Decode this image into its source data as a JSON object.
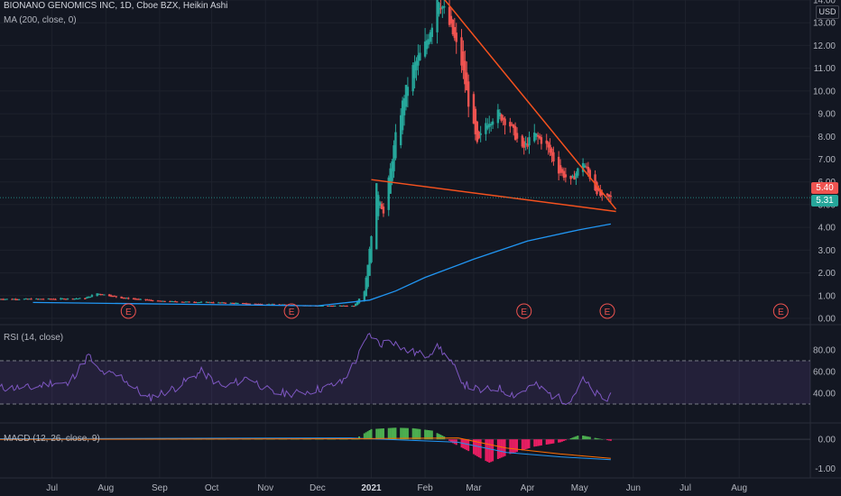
{
  "title": {
    "symbol": "BIONANO GENOMICS INC, 1D, Cboe BZX, Heikin Ashi",
    "ma": "MA (200, close, 0)",
    "rsi": "RSI (14, close)",
    "macd": "MACD (12, 26, close, 9)"
  },
  "badges": {
    "currency": "USD",
    "price_red": "5.40",
    "price_green": "5.31"
  },
  "colors": {
    "background": "#131722",
    "grid": "#1e222d",
    "up": "#26a69a",
    "down": "#ef5350",
    "ma": "#2196f3",
    "rsi": "#7e57c2",
    "trendline": "#f4511e",
    "macd_up": "#4caf50",
    "macd_down": "#e91e63",
    "earnings": "#ef5350"
  },
  "chart_data": {
    "type": "candlestick",
    "x_ticks": [
      "Jul",
      "Aug",
      "Sep",
      "Oct",
      "Nov",
      "Dec",
      "2021",
      "Feb",
      "Mar",
      "Apr",
      "May",
      "Jun",
      "Jul",
      "Aug"
    ],
    "price_axis": {
      "ticks": [
        "14.00",
        "13.00",
        "12.00",
        "11.00",
        "10.00",
        "9.00",
        "8.00",
        "7.00",
        "6.00",
        "5.00",
        "4.00",
        "3.00",
        "2.00",
        "1.00",
        "0.00"
      ],
      "range": [
        0,
        14
      ]
    },
    "price_path": [
      [
        "2020-07-01",
        0.85
      ],
      [
        "2020-07-20",
        0.88
      ],
      [
        "2020-07-27",
        1.1
      ],
      [
        "2020-08-10",
        0.9
      ],
      [
        "2020-09-01",
        0.75
      ],
      [
        "2020-10-01",
        0.7
      ],
      [
        "2020-11-01",
        0.62
      ],
      [
        "2020-12-01",
        0.55
      ],
      [
        "2020-12-22",
        0.55
      ],
      [
        "2020-12-28",
        1.2
      ],
      [
        "2020-12-31",
        3.0
      ],
      [
        "2021-01-04",
        5.8
      ],
      [
        "2021-01-08",
        4.6
      ],
      [
        "2021-01-15",
        8.0
      ],
      [
        "2021-01-20",
        9.8
      ],
      [
        "2021-01-25",
        11.0
      ],
      [
        "2021-02-01",
        12.0
      ],
      [
        "2021-02-05",
        13.0
      ],
      [
        "2021-02-08",
        14.3
      ],
      [
        "2021-02-12",
        13.5
      ],
      [
        "2021-02-17",
        12.5
      ],
      [
        "2021-02-22",
        11.2
      ],
      [
        "2021-02-26",
        9.5
      ],
      [
        "2021-03-03",
        7.6
      ],
      [
        "2021-03-08",
        8.6
      ],
      [
        "2021-03-15",
        9.0
      ],
      [
        "2021-03-22",
        8.5
      ],
      [
        "2021-03-29",
        7.4
      ],
      [
        "2021-04-05",
        8.1
      ],
      [
        "2021-04-12",
        7.6
      ],
      [
        "2021-04-19",
        6.5
      ],
      [
        "2021-04-26",
        6.0
      ],
      [
        "2021-05-03",
        6.9
      ],
      [
        "2021-05-10",
        5.7
      ],
      [
        "2021-05-14",
        5.3
      ],
      [
        "2021-05-19",
        5.3
      ]
    ],
    "moving_average_200": [
      [
        "2020-06-20",
        0.7
      ],
      [
        "2020-12-01",
        0.55
      ],
      [
        "2020-12-31",
        0.8
      ],
      [
        "2021-01-15",
        1.2
      ],
      [
        "2021-02-01",
        1.8
      ],
      [
        "2021-03-01",
        2.6
      ],
      [
        "2021-04-01",
        3.4
      ],
      [
        "2021-05-01",
        3.9
      ],
      [
        "2021-05-19",
        4.15
      ]
    ],
    "trendlines": [
      {
        "from": [
          "2021-02-07",
          14.5
        ],
        "to": [
          "2021-05-22",
          4.8
        ]
      },
      {
        "from": [
          "2021-01-01",
          6.1
        ],
        "to": [
          "2021-05-22",
          4.7
        ]
      }
    ],
    "earnings_markers": [
      {
        "date": "2020-08-14",
        "label": "E"
      },
      {
        "date": "2020-11-16",
        "label": "E"
      },
      {
        "date": "2021-03-30",
        "label": "E"
      },
      {
        "date": "2021-05-17",
        "label": "E"
      },
      {
        "date": "2021-08-25",
        "label": "E"
      }
    ],
    "rsi": {
      "axis_ticks": [
        "80.00",
        "60.00",
        "40.00"
      ],
      "range": [
        20,
        100
      ],
      "bands": [
        70,
        30
      ],
      "values": [
        [
          "2020-06-20",
          45
        ],
        [
          "2020-07-01",
          50
        ],
        [
          "2020-07-10",
          48
        ],
        [
          "2020-07-22",
          75
        ],
        [
          "2020-07-28",
          60
        ],
        [
          "2020-08-10",
          55
        ],
        [
          "2020-08-25",
          35
        ],
        [
          "2020-09-10",
          45
        ],
        [
          "2020-09-25",
          60
        ],
        [
          "2020-10-08",
          45
        ],
        [
          "2020-10-22",
          55
        ],
        [
          "2020-11-05",
          40
        ],
        [
          "2020-11-20",
          40
        ],
        [
          "2020-12-05",
          45
        ],
        [
          "2020-12-15",
          50
        ],
        [
          "2020-12-23",
          70
        ],
        [
          "2020-12-31",
          95
        ],
        [
          "2021-01-06",
          85
        ],
        [
          "2021-01-12",
          90
        ],
        [
          "2021-01-20",
          80
        ],
        [
          "2021-02-01",
          75
        ],
        [
          "2021-02-09",
          83
        ],
        [
          "2021-02-15",
          70
        ],
        [
          "2021-02-24",
          48
        ],
        [
          "2021-03-05",
          42
        ],
        [
          "2021-03-15",
          45
        ],
        [
          "2021-03-25",
          38
        ],
        [
          "2021-04-05",
          48
        ],
        [
          "2021-04-15",
          38
        ],
        [
          "2021-04-25",
          32
        ],
        [
          "2021-05-03",
          52
        ],
        [
          "2021-05-10",
          40
        ],
        [
          "2021-05-17",
          33
        ],
        [
          "2021-05-19",
          40
        ]
      ]
    },
    "macd": {
      "axis_ticks": [
        "0.00",
        "-1.00"
      ],
      "range": [
        -1.2,
        0.5
      ],
      "histogram": [
        [
          "2020-12-25",
          0.1
        ],
        [
          "2021-01-01",
          0.35
        ],
        [
          "2021-01-15",
          0.4
        ],
        [
          "2021-01-25",
          0.38
        ],
        [
          "2021-02-05",
          0.3
        ],
        [
          "2021-02-12",
          0.1
        ],
        [
          "2021-02-16",
          -0.1
        ],
        [
          "2021-02-26",
          -0.4
        ],
        [
          "2021-03-05",
          -0.65
        ],
        [
          "2021-03-10",
          -0.8
        ],
        [
          "2021-03-22",
          -0.5
        ],
        [
          "2021-04-05",
          -0.25
        ],
        [
          "2021-04-20",
          -0.1
        ],
        [
          "2021-05-01",
          0.15
        ],
        [
          "2021-05-10",
          0.05
        ],
        [
          "2021-05-19",
          -0.05
        ]
      ]
    }
  }
}
